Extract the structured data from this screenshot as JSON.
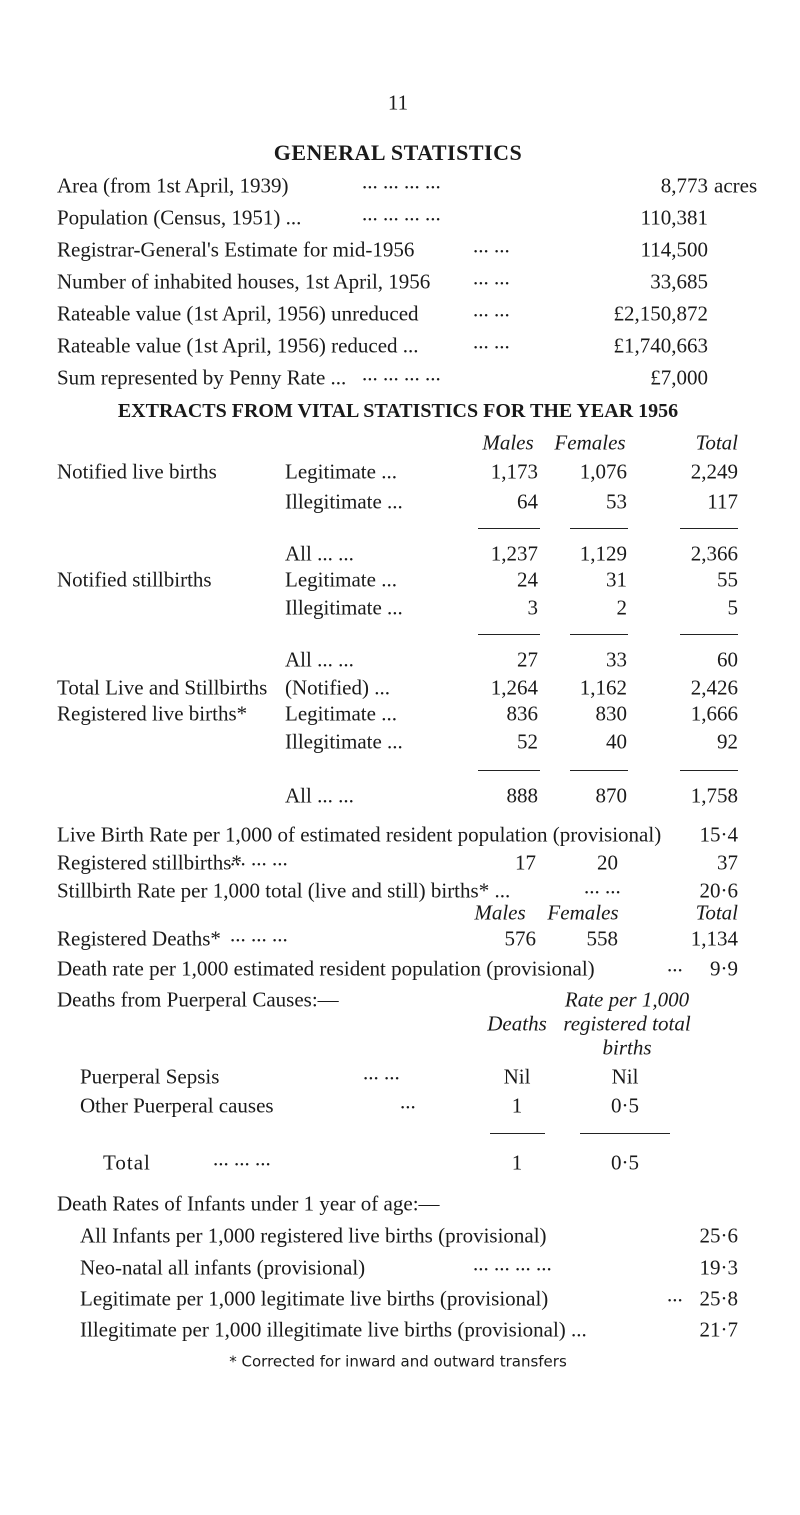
{
  "page_number": "11",
  "general": {
    "title": "GENERAL STATISTICS",
    "rows": [
      {
        "label": "Area (from 1st April, 1939)",
        "leader": "... ... ... ...",
        "value": "8,773",
        "unit": "acres"
      },
      {
        "label": "Population (Census, 1951) ...",
        "leader": "... ... ... ...",
        "value": "110,381"
      },
      {
        "label": "Registrar-General's Estimate for mid-1956",
        "leader": "... ...",
        "value": "114,500"
      },
      {
        "label": "Number of inhabited houses, 1st April, 1956",
        "leader": "... ...",
        "value": "33,685"
      },
      {
        "label": "Rateable value (1st April, 1956) unreduced",
        "leader": "... ...",
        "value": "£2,150,872"
      },
      {
        "label": "Rateable value (1st April, 1956) reduced ...",
        "leader": "... ...",
        "value": "£1,740,663"
      },
      {
        "label": "Sum represented by Penny Rate ...",
        "leader": "... ... ... ...",
        "value": "£7,000"
      }
    ]
  },
  "vital": {
    "title": "EXTRACTS FROM VITAL STATISTICS FOR THE YEAR 1956",
    "columns": [
      "Males",
      "Females",
      "Total"
    ],
    "rows": [
      {
        "group": "Notified live births",
        "label": "Legitimate ...",
        "values": [
          "1,173",
          "1,076",
          "2,249"
        ]
      },
      {
        "label": "Illegitimate ...",
        "values": [
          "64",
          "53",
          "117"
        ]
      },
      {
        "label": "All ... ...",
        "values": [
          "1,237",
          "1,129",
          "2,366"
        ]
      },
      {
        "group": "Notified stillbirths",
        "label": "Legitimate ...",
        "values": [
          "24",
          "31",
          "55"
        ]
      },
      {
        "label": "Illegitimate ...",
        "values": [
          "3",
          "2",
          "5"
        ]
      },
      {
        "label": "All ... ...",
        "values": [
          "27",
          "33",
          "60"
        ]
      },
      {
        "group": "Total Live and Stillbirths",
        "label": "(Notified) ...",
        "values": [
          "1,264",
          "1,162",
          "2,426"
        ]
      },
      {
        "group": "Registered live births*",
        "label": "Legitimate ...",
        "values": [
          "836",
          "830",
          "1,666"
        ]
      },
      {
        "label": "Illegitimate ...",
        "values": [
          "52",
          "40",
          "92"
        ]
      },
      {
        "label": "All ... ...",
        "values": [
          "888",
          "870",
          "1,758"
        ]
      }
    ]
  },
  "summary": {
    "live_birth_rate": {
      "label": "Live Birth Rate per 1,000 of estimated resident population (provisional)",
      "value": "15·4"
    },
    "registered_stillbirths": {
      "label": "Registered stillbirths*",
      "leader": "... ... ...",
      "values": [
        "17",
        "20",
        "37"
      ]
    },
    "stillbirth_rate": {
      "label": "Stillbirth Rate per 1,000 total (live and still) births* ...",
      "leader": "... ...",
      "value": "20·6"
    },
    "columns": [
      "Males",
      "Females",
      "Total"
    ],
    "registered_deaths": {
      "label": "Registered Deaths*",
      "leader": "... ... ...",
      "values": [
        "576",
        "558",
        "1,134"
      ]
    },
    "death_rate": {
      "label": "Death rate per 1,000 estimated resident population (provisional)",
      "leader": "...",
      "value": "9·9"
    }
  },
  "puerperal": {
    "title": "Deaths from Puerperal Causes:—",
    "deaths_header": "Deaths",
    "rate_header": [
      "Rate per 1,000",
      "registered total",
      "births"
    ],
    "rows": [
      {
        "label": "Puerperal Sepsis",
        "leader": "... ...",
        "values": [
          "Nil",
          "Nil"
        ]
      },
      {
        "label": "Other Puerperal causes",
        "leader": "...",
        "values": [
          "1",
          "0·5"
        ]
      }
    ],
    "total": {
      "label": "Total",
      "leader": "... ... ...",
      "values": [
        "1",
        "0·5"
      ]
    }
  },
  "infants": {
    "title": "Death Rates of Infants under 1 year of age:—",
    "rows": [
      {
        "label": "All Infants per 1,000 registered live births (provisional)",
        "value": "25·6"
      },
      {
        "label": "Neo-natal all infants (provisional)",
        "leader": "... ... ... ...",
        "value": "19·3"
      },
      {
        "label": "Legitimate per 1,000 legitimate live births (provisional)",
        "leader": "...",
        "value": "25·8"
      },
      {
        "label": "Illegitimate per 1,000 illegitimate live births (provisional) ...",
        "value": "21·7"
      }
    ]
  },
  "footnote": "* Corrected for inward and outward transfers"
}
